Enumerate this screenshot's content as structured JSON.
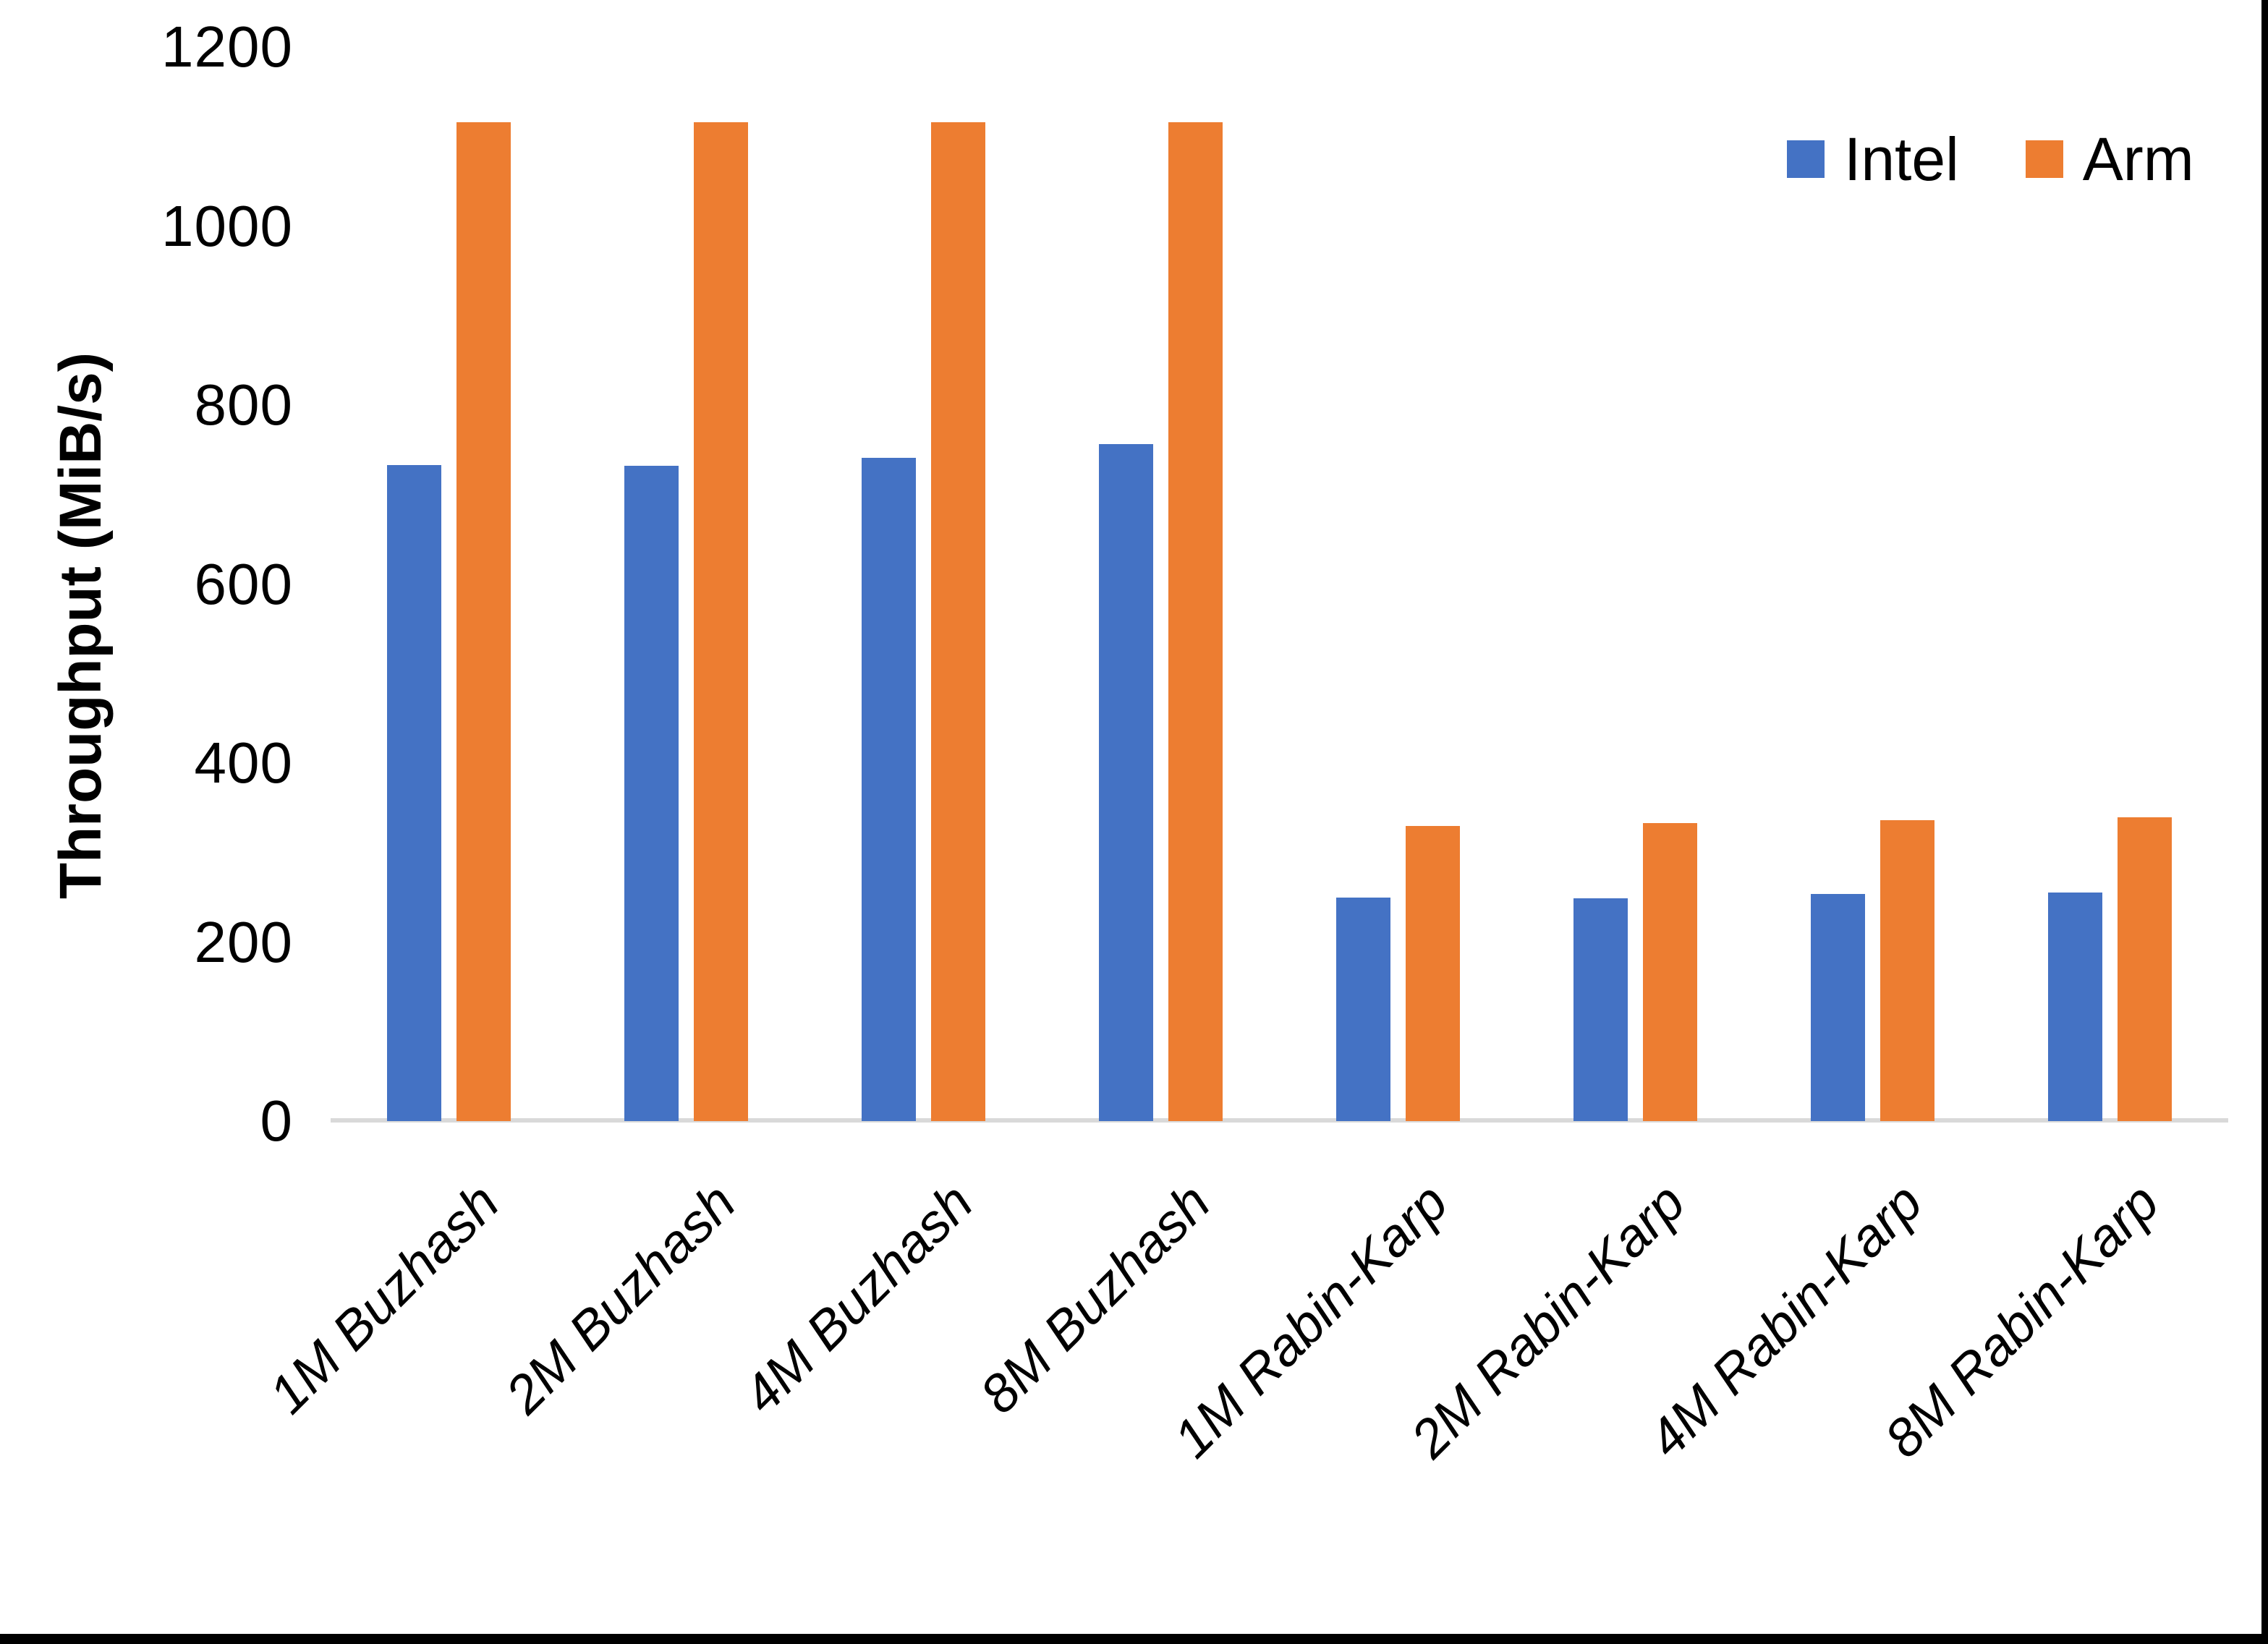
{
  "chart_data": {
    "type": "bar",
    "title": "",
    "ylabel": "Throughput (MiB/s)",
    "xlabel": "",
    "ylim": [
      0,
      1200
    ],
    "ytick_step": 200,
    "yticks": [
      0,
      200,
      400,
      600,
      800,
      1000,
      1200
    ],
    "grid": false,
    "legend_position": "top-right",
    "categories": [
      "1M Buzhash",
      "2M Buzhash",
      "4M Buzhash",
      "8M Buzhash",
      "1M Rabin-Karp",
      "2M Rabin-Karp",
      "4M Rabin-Karp",
      "8M Rabin-Karp"
    ],
    "series": [
      {
        "name": "Intel",
        "color": "#4472C4",
        "values": [
          733,
          732,
          741,
          756,
          250,
          249,
          254,
          255
        ]
      },
      {
        "name": "Arm",
        "color": "#ED7D31",
        "values": [
          1116,
          1116,
          1116,
          1116,
          330,
          333,
          336,
          339
        ]
      }
    ],
    "axis_line_color": "#D9D9D9",
    "text_color": "#000000",
    "window_edge_color": "#000000"
  }
}
